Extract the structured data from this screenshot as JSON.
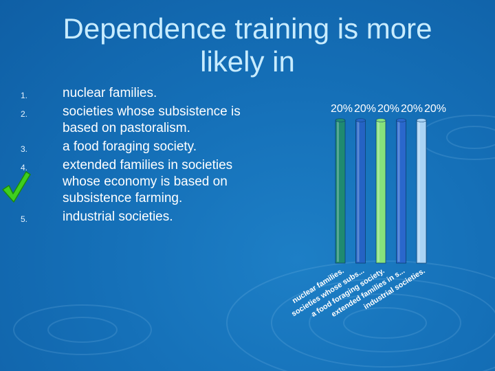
{
  "slide": {
    "title_line1": "Dependence training is more",
    "title_line2": "likely in"
  },
  "options": [
    {
      "number": "1.",
      "text": "nuclear families."
    },
    {
      "number": "2.",
      "text": "societies whose subsistence is based on pastoralism."
    },
    {
      "number": "3.",
      "text": "a food foraging society."
    },
    {
      "number": "4.",
      "text": "extended families in societies whose economy is based on subsistence farming."
    },
    {
      "number": "5.",
      "text": "industrial societies."
    }
  ],
  "correct_option": 4,
  "chart_data": {
    "type": "bar",
    "title": "",
    "categories": [
      "nuclear families.",
      "societies whose subs...",
      "a food foraging society.",
      "extended families in s...",
      "industrial societies."
    ],
    "values": [
      20,
      20,
      20,
      20,
      20
    ],
    "value_labels": [
      "20%",
      "20%",
      "20%",
      "20%",
      "20%"
    ],
    "ylim": [
      0,
      20
    ],
    "colors": [
      "#1f8a70",
      "#2563c4",
      "#86e27c",
      "#2a67cc",
      "#a9d3f5"
    ]
  }
}
